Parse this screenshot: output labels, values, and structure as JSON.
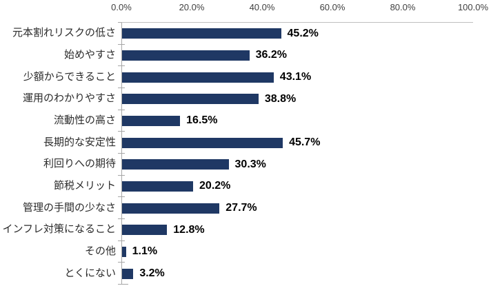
{
  "chart_data": {
    "type": "bar",
    "orientation": "horizontal",
    "title": "",
    "xlabel": "",
    "ylabel": "",
    "categories": [
      "元本割れリスクの低さ",
      "始めやすさ",
      "少額からできること",
      "運用のわかりやすさ",
      "流動性の高さ",
      "長期的な安定性",
      "利回りへの期待",
      "節税メリット",
      "管理の手間の少なさ",
      "インフレ対策になること",
      "その他",
      "とくにない"
    ],
    "values": [
      45.2,
      36.2,
      43.1,
      38.8,
      16.5,
      45.7,
      30.3,
      20.2,
      27.7,
      12.8,
      1.1,
      3.2
    ],
    "value_labels": [
      "45.2%",
      "36.2%",
      "43.1%",
      "38.8%",
      "16.5%",
      "45.7%",
      "30.3%",
      "20.2%",
      "27.7%",
      "12.8%",
      "1.1%",
      "3.2%"
    ],
    "xlim": [
      0,
      100
    ],
    "x_ticks": [
      "0.0%",
      "20.0%",
      "40.0%",
      "60.0%",
      "80.0%",
      "100.0%"
    ],
    "x_tick_values": [
      0,
      20,
      40,
      60,
      80,
      100
    ],
    "value_axis_position": "top",
    "grid": false,
    "legend": false,
    "data_labels": true
  },
  "colors": {
    "bar": "#1F3864",
    "axis_line": "#A6A6A6",
    "plot_border": "#BFBFBF",
    "tick_label": "#404040",
    "category_label": "#2b2b2b",
    "value_label": "#000000",
    "background": "#FFFFFF"
  }
}
